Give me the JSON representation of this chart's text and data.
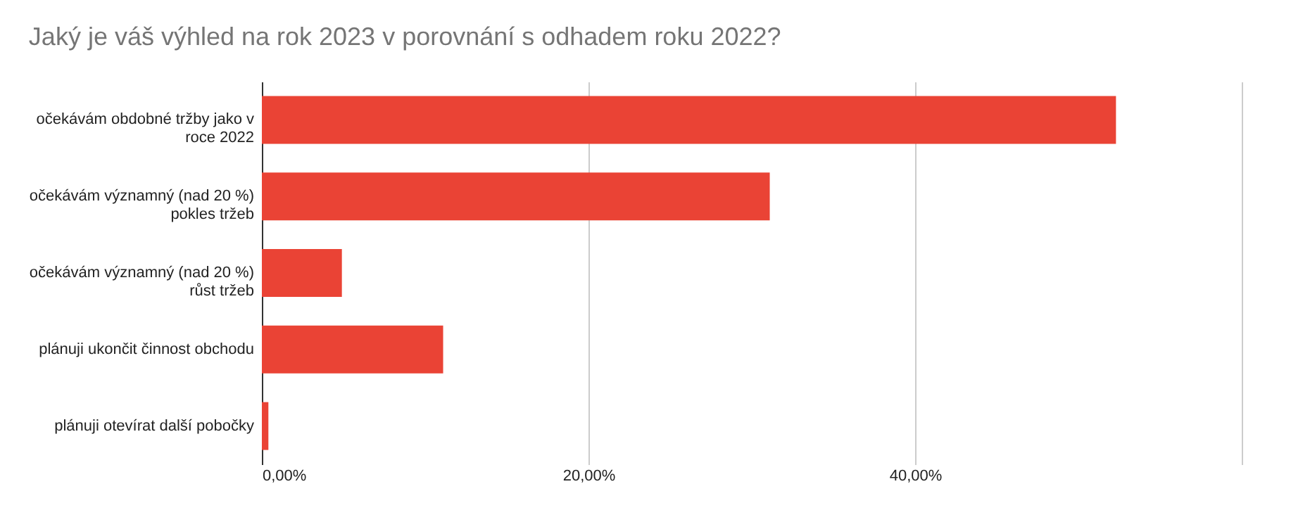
{
  "chart_data": {
    "type": "bar",
    "orientation": "horizontal",
    "title": "Jaký je váš výhled na rok 2023 v porovnání s odhadem roku 2022?",
    "categories": [
      "očekávám obdobné tržby jako v roce 2022",
      "očekávám významný (nad 20 %) pokles tržeb",
      "očekávám významný (nad 20 %) růst tržeb",
      "plánuji ukončit činnost obchodu",
      "plánuji otevírat další pobočky"
    ],
    "values": [
      52.3,
      31.1,
      4.9,
      11.1,
      0.4
    ],
    "color": "#ea4335",
    "xlim": [
      0,
      60
    ],
    "xticks": [
      {
        "value": 0,
        "label": "0,00%"
      },
      {
        "value": 20,
        "label": "20,00%"
      },
      {
        "value": 40,
        "label": "40,00%"
      },
      {
        "value": 60,
        "label": null
      }
    ],
    "grid": "x"
  }
}
